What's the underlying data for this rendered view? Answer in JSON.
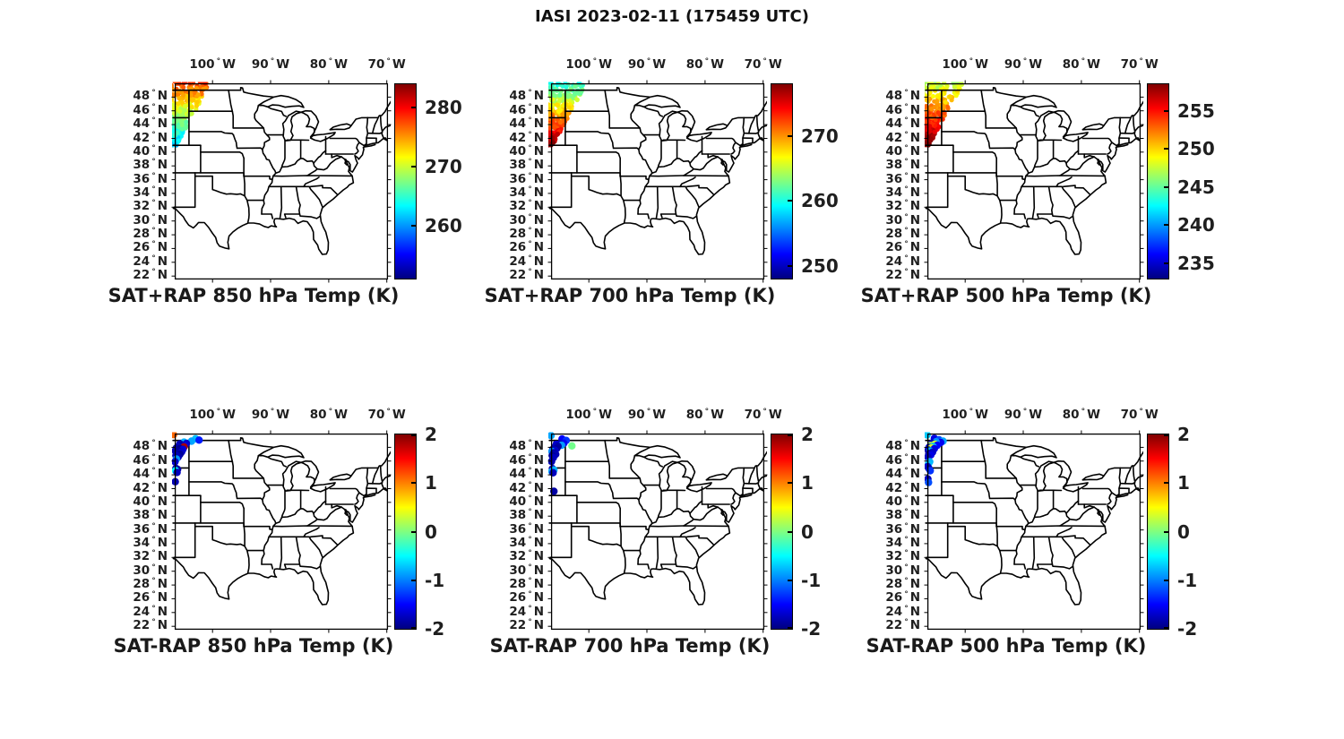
{
  "figure_title": "IASI 2023-02-11 (175459 UTC)",
  "axis": {
    "lon_ticks": [
      {
        "value": -100,
        "label": "100"
      },
      {
        "value": -90,
        "label": "90"
      },
      {
        "value": -80,
        "label": "80"
      },
      {
        "value": -70,
        "label": "70"
      }
    ],
    "lon_suffix": "W",
    "lat_ticks": [
      48,
      46,
      44,
      42,
      40,
      38,
      36,
      34,
      32,
      30,
      28,
      26,
      24,
      22
    ],
    "lat_suffix": "N",
    "lon_range": [
      -106.5,
      -69.8
    ],
    "lat_range": [
      21.5,
      50
    ],
    "region": "Central and Eastern United States state outlines"
  },
  "chart_data": {
    "type": "scatter-map",
    "colormap": "jet",
    "satellite": "IASI",
    "date": "2023-02-11",
    "time_utc": "175459",
    "panels": [
      {
        "title": "SAT+RAP 850 hPa Temp (K)",
        "row": 0,
        "col": 0,
        "colorbar": {
          "min": 251,
          "max": 284,
          "ticks": [
            280,
            270,
            260
          ]
        },
        "swath": {
          "count": 280,
          "seed": 101,
          "dot_radius": 2.6,
          "value_north": 276.5,
          "value_per_deg_south": -1.85,
          "noise": 1.6,
          "extent": {
            "lat_min": 41.0,
            "lat_max": 50.3,
            "lon_west": -107.3,
            "edge_north_lon": -100.2,
            "edge_south_lon": -106.2
          },
          "description": "IASI swath over the northwest corner: ~276 K (orange) near 49N decreasing to ~262 K (cyan) near 42-43N"
        }
      },
      {
        "title": "SAT+RAP 700 hPa Temp (K)",
        "row": 0,
        "col": 1,
        "colorbar": {
          "min": 248,
          "max": 278,
          "ticks": [
            270,
            260,
            250
          ]
        },
        "swath": {
          "count": 280,
          "seed": 202,
          "dot_radius": 2.6,
          "value_north": 261.5,
          "value_per_deg_south": 2.0,
          "noise": 1.5,
          "extent": {
            "lat_min": 41.0,
            "lat_max": 50.3,
            "lon_west": -107.3,
            "edge_north_lon": -100.2,
            "edge_south_lon": -106.2
          },
          "description": "~261 K (green/cyan) near 49N increasing to ~274 K (red-orange) near 42N"
        }
      },
      {
        "title": "SAT+RAP 500 hPa Temp (K)",
        "row": 0,
        "col": 2,
        "colorbar": {
          "min": 233,
          "max": 258.5,
          "ticks": [
            255,
            250,
            245,
            240,
            235
          ]
        },
        "swath": {
          "count": 280,
          "seed": 303,
          "dot_radius": 2.6,
          "value_north": 248.0,
          "value_per_deg_south": 1.35,
          "noise": 1.2,
          "extent": {
            "lat_min": 41.0,
            "lat_max": 50.3,
            "lon_west": -107.3,
            "edge_north_lon": -100.2,
            "edge_south_lon": -106.2
          },
          "description": "~248 K (cyan/green) near 49N increasing to ~257 K (orange-red) near 42N"
        }
      },
      {
        "title": "SAT-RAP 850 hPa Temp (K)",
        "row": 1,
        "col": 0,
        "colorbar": {
          "min": -2,
          "max": 2,
          "ticks": [
            2,
            1,
            0,
            -1,
            -2
          ]
        },
        "dot_radius": 4.2,
        "points": [
          [
            -106.7,
            49.85,
            1.1
          ],
          [
            -102.9,
            49.25,
            -0.75
          ],
          [
            -102.3,
            49.05,
            -1.4
          ],
          [
            -103.6,
            48.9,
            -0.85
          ],
          [
            -104.9,
            48.75,
            -0.8
          ],
          [
            -104.5,
            48.55,
            -1.7
          ],
          [
            -105.6,
            48.5,
            -1.8
          ],
          [
            -105.2,
            48.3,
            -1.9
          ],
          [
            -104.8,
            48.2,
            -1.6
          ],
          [
            -105.9,
            48.1,
            -1.75
          ],
          [
            -104.9,
            48.05,
            1.85
          ],
          [
            -106.2,
            47.9,
            -1.8
          ],
          [
            -105.6,
            47.8,
            -1.95
          ],
          [
            -105.1,
            47.7,
            -1.65
          ],
          [
            -106.4,
            47.5,
            -1.8
          ],
          [
            -105.8,
            47.45,
            -1.9
          ],
          [
            -105.3,
            47.35,
            -1.7
          ],
          [
            -106.1,
            47.1,
            -1.85
          ],
          [
            -105.6,
            47.0,
            -1.9
          ],
          [
            -106.3,
            46.8,
            -1.75
          ],
          [
            -105.9,
            46.6,
            -1.8
          ],
          [
            -106.2,
            46.3,
            -0.9
          ],
          [
            -106.45,
            45.9,
            -1.7
          ],
          [
            -106.3,
            44.95,
            -1.8
          ],
          [
            -106.0,
            44.8,
            -1.85
          ],
          [
            -106.35,
            44.6,
            -0.5
          ],
          [
            -106.1,
            44.35,
            -1.75
          ],
          [
            -106.4,
            43.0,
            -1.8
          ]
        ]
      },
      {
        "title": "SAT-RAP 700 hPa Temp (K)",
        "row": 1,
        "col": 1,
        "colorbar": {
          "min": -2,
          "max": 2,
          "ticks": [
            2,
            1,
            0,
            -1,
            -2
          ]
        },
        "dot_radius": 4.2,
        "points": [
          [
            -106.5,
            49.7,
            -0.85
          ],
          [
            -104.6,
            49.2,
            -1.5
          ],
          [
            -103.9,
            49.0,
            -1.3
          ],
          [
            -104.3,
            48.6,
            -1.55
          ],
          [
            -102.9,
            48.2,
            -0.05
          ],
          [
            -105.0,
            48.5,
            -1.8
          ],
          [
            -105.6,
            48.45,
            -1.7
          ],
          [
            -104.7,
            48.3,
            -0.9
          ],
          [
            -105.3,
            48.15,
            -1.85
          ],
          [
            -105.9,
            48.0,
            -1.75
          ],
          [
            -105.5,
            47.85,
            -1.9
          ],
          [
            -106.2,
            47.7,
            -1.8
          ],
          [
            -105.8,
            47.55,
            -1.7
          ],
          [
            -106.35,
            47.4,
            -0.95
          ],
          [
            -106.0,
            47.2,
            -1.85
          ],
          [
            -105.7,
            47.0,
            -1.8
          ],
          [
            -106.3,
            46.8,
            -1.9
          ],
          [
            -106.1,
            46.5,
            -1.75
          ],
          [
            -106.4,
            45.95,
            -1.8
          ],
          [
            -106.25,
            44.9,
            -1.8
          ],
          [
            -106.0,
            44.7,
            -0.8
          ],
          [
            -106.35,
            44.5,
            -0.85
          ],
          [
            -106.15,
            44.3,
            -1.75
          ],
          [
            -106.0,
            41.6,
            -1.85
          ]
        ]
      },
      {
        "title": "SAT-RAP 500 hPa Temp (K)",
        "row": 1,
        "col": 2,
        "colorbar": {
          "min": -2,
          "max": 2,
          "ticks": [
            2,
            1,
            0,
            -1,
            -2
          ]
        },
        "dot_radius": 4.2,
        "points": [
          [
            -106.55,
            49.8,
            -0.7
          ],
          [
            -105.3,
            49.3,
            -1.6
          ],
          [
            -104.5,
            49.1,
            -1.2
          ],
          [
            -103.8,
            48.9,
            -0.85
          ],
          [
            -104.2,
            48.7,
            -1.55
          ],
          [
            -105.0,
            48.8,
            -0.9
          ],
          [
            -105.7,
            48.6,
            -1.75
          ],
          [
            -105.2,
            48.45,
            0.3
          ],
          [
            -104.8,
            48.3,
            -1.5
          ],
          [
            -105.9,
            48.25,
            0.2
          ],
          [
            -105.5,
            48.1,
            -0.8
          ],
          [
            -106.2,
            48.0,
            -1.7
          ],
          [
            -105.8,
            47.9,
            0.35
          ],
          [
            -105.3,
            47.8,
            -1.6
          ],
          [
            -106.35,
            47.6,
            -1.8
          ],
          [
            -106.0,
            47.45,
            -0.75
          ],
          [
            -105.6,
            47.3,
            -1.7
          ],
          [
            -106.25,
            47.1,
            -1.85
          ],
          [
            -105.9,
            46.9,
            -1.6
          ],
          [
            -106.4,
            46.6,
            -1.75
          ],
          [
            -106.1,
            45.9,
            -0.8
          ],
          [
            -106.3,
            45.6,
            -0.75
          ],
          [
            -106.45,
            45.2,
            -1.7
          ],
          [
            -106.2,
            44.9,
            -1.8
          ],
          [
            -106.0,
            44.6,
            -1.3
          ],
          [
            -106.4,
            43.4,
            -1.75
          ],
          [
            -106.3,
            42.9,
            -1.2
          ]
        ]
      }
    ]
  }
}
